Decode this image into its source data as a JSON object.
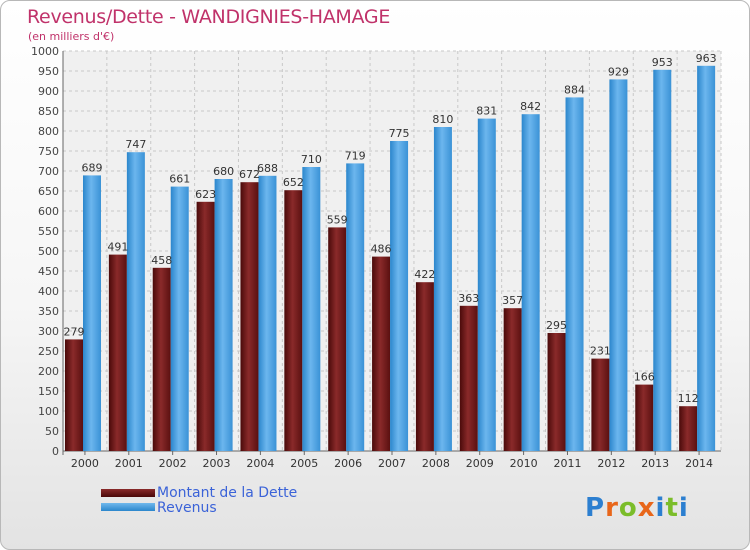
{
  "header": {
    "title": "Revenus/Dette - WANDIGNIES-HAMAGE",
    "subtitle": "(en milliers d'€)"
  },
  "legend": {
    "items": [
      {
        "label": "Montant de la Dette",
        "color": "#6e1a1a"
      },
      {
        "label": "Revenus",
        "color": "#4aa3e4"
      }
    ]
  },
  "logo": {
    "text": "Proxiti"
  },
  "chart_data": {
    "type": "bar",
    "categories": [
      "2000",
      "2001",
      "2002",
      "2003",
      "2004",
      "2005",
      "2006",
      "2007",
      "2008",
      "2009",
      "2010",
      "2011",
      "2012",
      "2013",
      "2014"
    ],
    "series": [
      {
        "name": "Montant de la Dette",
        "color": "#6e1a1a",
        "values": [
          279,
          491,
          458,
          623,
          672,
          652,
          559,
          486,
          422,
          363,
          357,
          295,
          231,
          166,
          112
        ]
      },
      {
        "name": "Revenus",
        "color": "#4aa3e4",
        "values": [
          689,
          747,
          661,
          680,
          688,
          710,
          719,
          775,
          810,
          831,
          842,
          884,
          929,
          953,
          963
        ]
      }
    ],
    "ylim": [
      0,
      1000
    ],
    "ytick_step": 50,
    "grid": true,
    "legend_position": "bottom-left"
  }
}
